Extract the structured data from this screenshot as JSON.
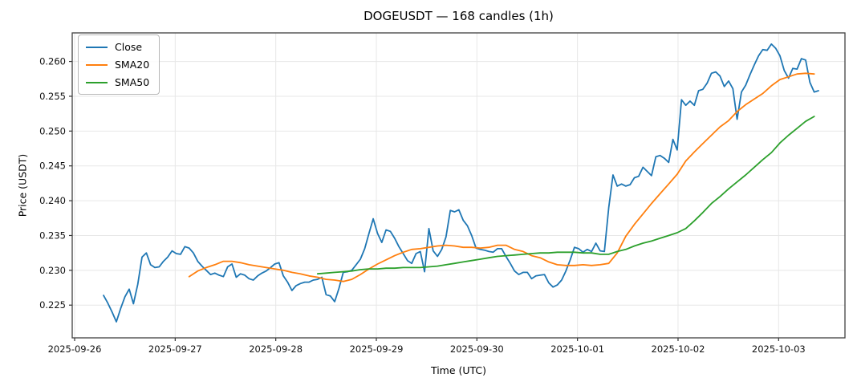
{
  "figure": {
    "title": "DOGEUSDT — 168 candles (1h)"
  },
  "chart_data": {
    "type": "line",
    "title": "DOGEUSDT — 168 candles (1h)",
    "xlabel": "Time (UTC)",
    "ylabel": "Price (USDT)",
    "grid": true,
    "legend_position": "upper left",
    "n_points": 168,
    "ylim": [
      0.2203,
      0.2641
    ],
    "x_tick_labels": [
      "2025-09-26",
      "2025-09-27",
      "2025-09-28",
      "2025-09-29",
      "2025-09-30",
      "2025-10-01",
      "2025-10-02",
      "2025-10-03"
    ],
    "y_ticks": [
      0.225,
      0.23,
      0.235,
      0.24,
      0.245,
      0.25,
      0.255,
      0.26
    ],
    "y_tick_labels": [
      "0.225",
      "0.230",
      "0.235",
      "0.240",
      "0.245",
      "0.250",
      "0.255",
      "0.260"
    ],
    "series": [
      {
        "name": "Close",
        "color": "#1f77b4",
        "start_index": 0,
        "step": 1,
        "values": [
          0.2264,
          0.2253,
          0.224,
          0.2226,
          0.2245,
          0.2262,
          0.2273,
          0.2252,
          0.228,
          0.2319,
          0.2325,
          0.2308,
          0.2304,
          0.2305,
          0.2313,
          0.2319,
          0.2328,
          0.2324,
          0.2323,
          0.2334,
          0.2332,
          0.2325,
          0.2313,
          0.2306,
          0.23,
          0.2294,
          0.2296,
          0.2293,
          0.2291,
          0.2305,
          0.2309,
          0.229,
          0.2295,
          0.2293,
          0.2288,
          0.2286,
          0.2292,
          0.2296,
          0.2299,
          0.2304,
          0.2309,
          0.2311,
          0.2292,
          0.2283,
          0.2271,
          0.2278,
          0.2281,
          0.2283,
          0.2283,
          0.2286,
          0.2287,
          0.229,
          0.2265,
          0.2263,
          0.2255,
          0.2274,
          0.2297,
          0.2298,
          0.23,
          0.2308,
          0.2316,
          0.2331,
          0.2353,
          0.2374,
          0.2353,
          0.234,
          0.2358,
          0.2356,
          0.2346,
          0.2334,
          0.2324,
          0.2314,
          0.231,
          0.2324,
          0.2327,
          0.2298,
          0.236,
          0.2328,
          0.232,
          0.233,
          0.2348,
          0.2386,
          0.2384,
          0.2387,
          0.2372,
          0.2364,
          0.235,
          0.2332,
          0.233,
          0.2329,
          0.2327,
          0.2326,
          0.2331,
          0.2331,
          0.232,
          0.231,
          0.2299,
          0.2294,
          0.2297,
          0.2297,
          0.2288,
          0.2292,
          0.2293,
          0.2294,
          0.2282,
          0.2276,
          0.2279,
          0.2286,
          0.2299,
          0.2315,
          0.2333,
          0.2331,
          0.2326,
          0.233,
          0.2327,
          0.2339,
          0.2328,
          0.2327,
          0.239,
          0.2437,
          0.2421,
          0.2424,
          0.2421,
          0.2423,
          0.2433,
          0.2435,
          0.2448,
          0.2442,
          0.2436,
          0.2463,
          0.2465,
          0.2461,
          0.2455,
          0.2488,
          0.2473,
          0.2545,
          0.2537,
          0.2543,
          0.2537,
          0.2558,
          0.256,
          0.2569,
          0.2583,
          0.2585,
          0.2579,
          0.2564,
          0.2572,
          0.2561,
          0.2517,
          0.2556,
          0.2566,
          0.2581,
          0.2595,
          0.2608,
          0.2617,
          0.2616,
          0.2625,
          0.2619,
          0.2608,
          0.2587,
          0.2576,
          0.259,
          0.2589,
          0.2604,
          0.2602,
          0.257,
          0.2556,
          0.2558
        ]
      },
      {
        "name": "SMA20",
        "color": "#ff7f0e",
        "start_index": 20,
        "step": 2,
        "values": [
          0.2291,
          0.2299,
          0.2304,
          0.2308,
          0.2313,
          0.2313,
          0.2311,
          0.2308,
          0.2306,
          0.2304,
          0.2302,
          0.23,
          0.2297,
          0.2295,
          0.2292,
          0.229,
          0.2287,
          0.2286,
          0.2284,
          0.2287,
          0.2294,
          0.2302,
          0.2309,
          0.2315,
          0.2321,
          0.2326,
          0.233,
          0.2331,
          0.2333,
          0.2335,
          0.2336,
          0.2335,
          0.2333,
          0.2333,
          0.2332,
          0.2333,
          0.2336,
          0.2336,
          0.233,
          0.2327,
          0.2321,
          0.2318,
          0.2312,
          0.2308,
          0.2307,
          0.2307,
          0.2308,
          0.2307,
          0.2308,
          0.231,
          0.2325,
          0.2349,
          0.2366,
          0.2381,
          0.2396,
          0.241,
          0.2424,
          0.2438,
          0.2457,
          0.247,
          0.2482,
          0.2494,
          0.2506,
          0.2515,
          0.2528,
          0.2538,
          0.2546,
          0.2554,
          0.2565,
          0.2574,
          0.2578,
          0.2582,
          0.2583,
          0.2582
        ]
      },
      {
        "name": "SMA50",
        "color": "#2ca02c",
        "start_index": 50,
        "step": 2,
        "values": [
          0.2295,
          0.2296,
          0.2297,
          0.2298,
          0.2299,
          0.2301,
          0.2302,
          0.2302,
          0.2303,
          0.2303,
          0.2304,
          0.2304,
          0.2304,
          0.2305,
          0.2306,
          0.2308,
          0.231,
          0.2312,
          0.2314,
          0.2316,
          0.2318,
          0.232,
          0.2321,
          0.2322,
          0.2323,
          0.2324,
          0.2325,
          0.2325,
          0.2326,
          0.2326,
          0.2326,
          0.2325,
          0.2325,
          0.2323,
          0.2323,
          0.2327,
          0.233,
          0.2335,
          0.2339,
          0.2342,
          0.2346,
          0.235,
          0.2354,
          0.236,
          0.2371,
          0.2383,
          0.2396,
          0.2406,
          0.2417,
          0.2427,
          0.2437,
          0.2448,
          0.2459,
          0.2469,
          0.2483,
          0.2494,
          0.2504,
          0.2514,
          0.2521
        ]
      }
    ]
  }
}
